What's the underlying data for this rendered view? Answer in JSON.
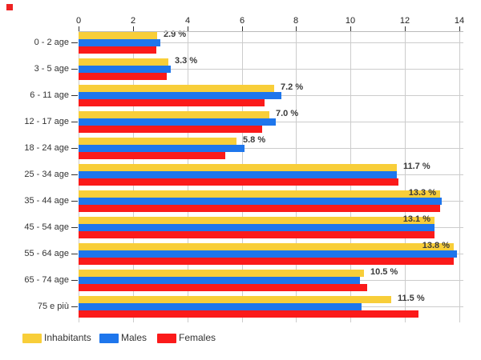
{
  "styles": {
    "background": "#ffffff",
    "grid_color": "#cccccc",
    "axis_line_color": "#bbbbbb",
    "tick_color": "#333333",
    "tick_label_color": "#222222",
    "category_label_color": "#333333",
    "value_label_color": "#3a3a3a",
    "legend_label_color": "#333333"
  },
  "decorations": {
    "red_marker_color": "#ee2222"
  },
  "chart_data": {
    "type": "bar",
    "orientation": "horizontal",
    "categories": [
      "0 - 2 age",
      "3 - 5 age",
      "6 - 11 age",
      "12 - 17 age",
      "18 - 24 age",
      "25 - 34 age",
      "35 - 44 age",
      "45 - 54 age",
      "55 - 64 age",
      "65 - 74 age",
      "75 e più"
    ],
    "series": [
      {
        "name": "Inhabitants",
        "color": "#f8ce39",
        "values": [
          2.9,
          3.3,
          7.2,
          7.0,
          5.8,
          11.7,
          13.3,
          13.1,
          13.8,
          10.5,
          11.5
        ]
      },
      {
        "name": "Males",
        "color": "#1e76ec",
        "values": [
          3.0,
          3.4,
          7.45,
          7.25,
          6.1,
          11.7,
          13.35,
          13.1,
          13.9,
          10.35,
          10.4
        ]
      },
      {
        "name": "Females",
        "color": "#fb1a1a",
        "values": [
          2.85,
          3.25,
          6.85,
          6.75,
          5.4,
          11.75,
          13.3,
          13.1,
          13.8,
          10.6,
          12.5
        ]
      }
    ],
    "value_labels": [
      "2.9 %",
      "3.3 %",
      "7.2 %",
      "7.0 %",
      "5.8 %",
      "11.7 %",
      "13.3 %",
      "13.1 %",
      "13.8 %",
      "10.5 %",
      "11.5 %"
    ],
    "x_axis": {
      "position": "top",
      "min": 0,
      "max": 14,
      "tick_step": 2,
      "ticks": [
        "0",
        "2",
        "4",
        "6",
        "8",
        "10",
        "12",
        "14"
      ]
    },
    "grid": {
      "vertical": true,
      "horizontal": "category-centers"
    },
    "legend": {
      "position": "bottom-left",
      "entries": [
        "Inhabitants",
        "Males",
        "Females"
      ]
    }
  }
}
